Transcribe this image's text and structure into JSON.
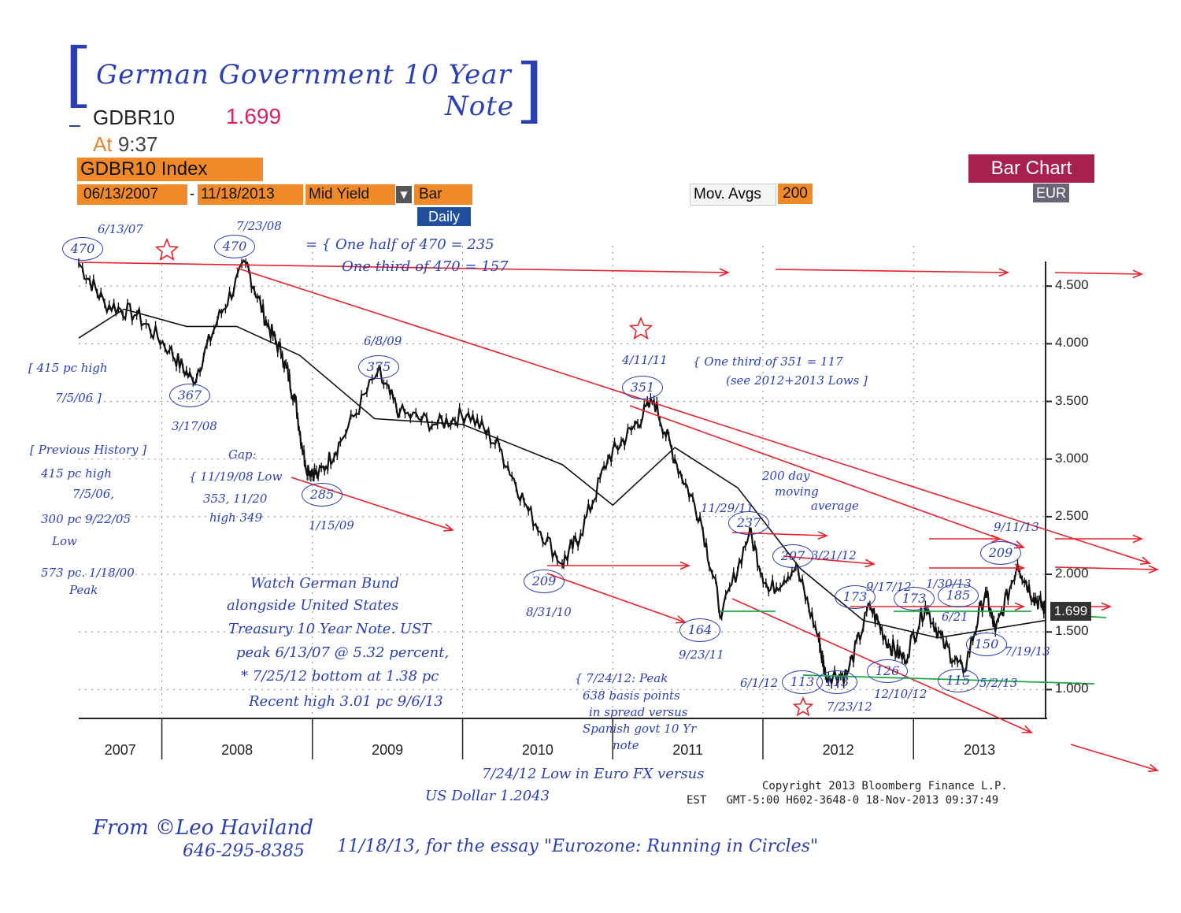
{
  "handwritten_title": {
    "line1": "German Government 10 Year",
    "line2": "Note"
  },
  "ticker": {
    "symbol": "GDBR10",
    "value": "1.699",
    "time_prefix": "At",
    "time": "9:37"
  },
  "index_bar": {
    "title": "GDBR10 Index",
    "start": "06/13/2007",
    "dash": "-",
    "end": "11/18/2013",
    "field": "Mid Yield",
    "type": "Bar",
    "period": "Daily"
  },
  "right_controls": {
    "mov_avg_label": "Mov. Avgs",
    "mov_avg_value": "200",
    "chart_type": "Bar Chart",
    "currency": "EUR"
  },
  "colors": {
    "price_bars": "#111111",
    "moving_average": "#111111",
    "annotation_red": "#e8202a",
    "annotation_blue": "#2b3fb5",
    "annotation_green": "#24a84a",
    "bloomberg_orange": "#f08a28",
    "bloomberg_magenta": "#a8204e"
  },
  "chart_data": {
    "type": "bar",
    "ylabel": "",
    "xlabel": "",
    "ylim": [
      0.75,
      4.85
    ],
    "grid": true,
    "y_ticks": [
      "4.500",
      "4.000",
      "3.500",
      "3.000",
      "2.500",
      "2.000",
      "1.500",
      "1.000"
    ],
    "y_tick_values": [
      4.5,
      4.0,
      3.5,
      3.0,
      2.5,
      2.0,
      1.5,
      1.0
    ],
    "x_ticks": [
      "2007",
      "2008",
      "2009",
      "2010",
      "2011",
      "2012",
      "2013"
    ],
    "x_range": [
      "2007-06-13",
      "2013-11-18"
    ],
    "last_value_label": "1.699",
    "series": [
      {
        "name": "GDBR10 Mid Yield",
        "points": [
          [
            "2007-06-13",
            4.7
          ],
          [
            "2007-08-15",
            4.35
          ],
          [
            "2007-11-01",
            4.25
          ],
          [
            "2008-01-20",
            3.95
          ],
          [
            "2008-03-17",
            3.67
          ],
          [
            "2008-05-15",
            4.2
          ],
          [
            "2008-07-23",
            4.7
          ],
          [
            "2008-09-10",
            4.2
          ],
          [
            "2008-10-20",
            3.9
          ],
          [
            "2008-11-19",
            3.53
          ],
          [
            "2008-12-15",
            2.95
          ],
          [
            "2009-01-15",
            2.85
          ],
          [
            "2009-03-10",
            3.15
          ],
          [
            "2009-06-08",
            3.75
          ],
          [
            "2009-08-01",
            3.4
          ],
          [
            "2009-11-01",
            3.3
          ],
          [
            "2010-01-15",
            3.4
          ],
          [
            "2010-04-01",
            3.1
          ],
          [
            "2010-06-10",
            2.55
          ],
          [
            "2010-08-31",
            2.09
          ],
          [
            "2010-10-15",
            2.35
          ],
          [
            "2010-12-20",
            3.0
          ],
          [
            "2011-02-15",
            3.25
          ],
          [
            "2011-04-11",
            3.51
          ],
          [
            "2011-06-01",
            3.0
          ],
          [
            "2011-08-01",
            2.5
          ],
          [
            "2011-09-23",
            1.64
          ],
          [
            "2011-11-29",
            2.37
          ],
          [
            "2012-01-15",
            1.85
          ],
          [
            "2012-03-21",
            2.07
          ],
          [
            "2012-05-15",
            1.45
          ],
          [
            "2012-06-01",
            1.13
          ],
          [
            "2012-07-23",
            1.13
          ],
          [
            "2012-09-17",
            1.73
          ],
          [
            "2012-11-01",
            1.4
          ],
          [
            "2012-12-10",
            1.26
          ],
          [
            "2013-01-30",
            1.73
          ],
          [
            "2013-03-15",
            1.4
          ],
          [
            "2013-05-02",
            1.15
          ],
          [
            "2013-06-25",
            1.85
          ],
          [
            "2013-07-19",
            1.5
          ],
          [
            "2013-09-11",
            2.09
          ],
          [
            "2013-10-20",
            1.8
          ],
          [
            "2013-11-18",
            1.7
          ]
        ]
      },
      {
        "name": "200 day moving average",
        "points": [
          [
            "2007-06-13",
            4.05
          ],
          [
            "2007-10-01",
            4.3
          ],
          [
            "2008-03-01",
            4.15
          ],
          [
            "2008-07-01",
            4.15
          ],
          [
            "2008-12-01",
            3.9
          ],
          [
            "2009-06-01",
            3.35
          ],
          [
            "2010-01-01",
            3.3
          ],
          [
            "2010-09-01",
            2.95
          ],
          [
            "2011-01-01",
            2.6
          ],
          [
            "2011-06-01",
            3.1
          ],
          [
            "2011-11-01",
            2.75
          ],
          [
            "2012-04-01",
            2.05
          ],
          [
            "2012-09-01",
            1.6
          ],
          [
            "2013-03-01",
            1.45
          ],
          [
            "2013-11-18",
            1.6
          ]
        ]
      }
    ]
  },
  "annotations": {
    "point_labels": [
      {
        "value": "470",
        "date": "6/13/07"
      },
      {
        "value": "470",
        "date": "7/23/08"
      },
      {
        "value": "367",
        "date": "3/17/08"
      },
      {
        "value": "375",
        "date": "6/8/09"
      },
      {
        "value": "285",
        "date": "1/15/09"
      },
      {
        "value": "209",
        "date": "8/31/10"
      },
      {
        "value": "351",
        "date": "4/11/11"
      },
      {
        "value": "164",
        "date": "9/23/11"
      },
      {
        "value": "237",
        "date": "11/29/11"
      },
      {
        "value": "207",
        "date": "3/21/12"
      },
      {
        "value": "113",
        "date": "6/1/12"
      },
      {
        "value": "113",
        "date": "7/23/12"
      },
      {
        "value": "173",
        "date": "9/17/12"
      },
      {
        "value": "126",
        "date": "12/10/12"
      },
      {
        "value": "173",
        "date": "1/30/13"
      },
      {
        "value": "185",
        "date": "6/21"
      },
      {
        "value": "115",
        "date": "5/2/13"
      },
      {
        "value": "150",
        "date": "7/19/13"
      },
      {
        "value": "209",
        "date": "9/11/13"
      }
    ],
    "notes": {
      "half_third": [
        "= { One half of 470 = 235",
        "One third of 470 = 157"
      ],
      "third_351": [
        "{ One third of 351 = 117",
        "(see 2012+2013 Lows ]"
      ],
      "ma_note": [
        "200 day",
        "moving",
        "average"
      ],
      "pc_high": [
        "[ 415 pc high",
        "7/5/06 ]"
      ],
      "history": [
        "[ Previous History ]",
        "415 pc high",
        "7/5/06,",
        "300 pc 9/22/05",
        "Low",
        "573 pc. 1/18/00",
        "Peak"
      ],
      "gap": [
        "Gap:",
        "{ 11/19/08 Low",
        "353, 11/20",
        "high 349"
      ],
      "watch": [
        "Watch German Bund",
        "alongside United States",
        "Treasury 10 Year Note. UST",
        "peak 6/13/07 @ 5.32 percent,",
        "* 7/25/12 bottom at 1.38 pc",
        "Recent high 3.01 pc 9/6/13"
      ],
      "spread": [
        "{ 7/24/12: Peak",
        "638 basis points",
        "in spread versus",
        "Spanish govt 10 Yr",
        "note"
      ],
      "eurofx": [
        "7/24/12 Low in Euro FX versus",
        "US Dollar 1.2043"
      ],
      "signature": [
        "From ©Leo Haviland",
        "646-295-8385"
      ],
      "essay": "11/18/13, for the essay \"Eurozone: Running in Circles\""
    }
  },
  "footer": {
    "copyright": "Copyright 2013 Bloomberg Finance L.P.",
    "timestamp": "EST   GMT-5:00 H602-3648-0 18-Nov-2013 09:37:49"
  }
}
